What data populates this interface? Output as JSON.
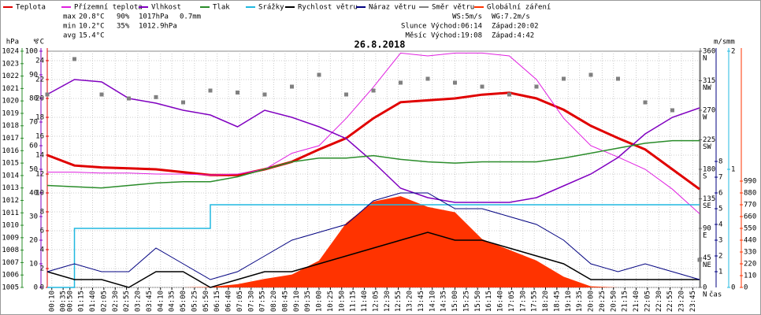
{
  "chart_data": {
    "type": "line",
    "title": "26.8.2018",
    "x_label": "čas",
    "xlim": [
      0,
      1440
    ],
    "xticks": [
      {
        "value": 10,
        "label": "00:10"
      },
      {
        "value": 35,
        "label": "00:35"
      },
      {
        "value": 50,
        "label": "00:50"
      },
      {
        "value": 75,
        "label": "01:15"
      },
      {
        "value": 100,
        "label": "01:40"
      },
      {
        "value": 125,
        "label": "02:05"
      },
      {
        "value": 150,
        "label": "02:30"
      },
      {
        "value": 175,
        "label": "02:55"
      },
      {
        "value": 200,
        "label": "03:20"
      },
      {
        "value": 225,
        "label": "03:45"
      },
      {
        "value": 250,
        "label": "04:10"
      },
      {
        "value": 275,
        "label": "04:35"
      },
      {
        "value": 300,
        "label": "05:00"
      },
      {
        "value": 325,
        "label": "05:25"
      },
      {
        "value": 350,
        "label": "05:50"
      },
      {
        "value": 375,
        "label": "06:15"
      },
      {
        "value": 400,
        "label": "06:40"
      },
      {
        "value": 425,
        "label": "07:05"
      },
      {
        "value": 450,
        "label": "07:30"
      },
      {
        "value": 475,
        "label": "07:55"
      },
      {
        "value": 500,
        "label": "08:20"
      },
      {
        "value": 525,
        "label": "08:45"
      },
      {
        "value": 550,
        "label": "09:10"
      },
      {
        "value": 575,
        "label": "09:35"
      },
      {
        "value": 600,
        "label": "10:00"
      },
      {
        "value": 625,
        "label": "10:25"
      },
      {
        "value": 650,
        "label": "10:50"
      },
      {
        "value": 675,
        "label": "11:15"
      },
      {
        "value": 700,
        "label": "11:40"
      },
      {
        "value": 725,
        "label": "12:05"
      },
      {
        "value": 750,
        "label": "12:30"
      },
      {
        "value": 775,
        "label": "12:55"
      },
      {
        "value": 800,
        "label": "13:20"
      },
      {
        "value": 825,
        "label": "13:45"
      },
      {
        "value": 850,
        "label": "14:10"
      },
      {
        "value": 875,
        "label": "14:35"
      },
      {
        "value": 900,
        "label": "15:00"
      },
      {
        "value": 925,
        "label": "15:25"
      },
      {
        "value": 950,
        "label": "15:50"
      },
      {
        "value": 975,
        "label": "16:15"
      },
      {
        "value": 1000,
        "label": "16:40"
      },
      {
        "value": 1025,
        "label": "17:05"
      },
      {
        "value": 1050,
        "label": "17:30"
      },
      {
        "value": 1075,
        "label": "17:55"
      },
      {
        "value": 1100,
        "label": "18:20"
      },
      {
        "value": 1125,
        "label": "18:45"
      },
      {
        "value": 1150,
        "label": "19:10"
      },
      {
        "value": 1175,
        "label": "19:35"
      },
      {
        "value": 1200,
        "label": "20:00"
      },
      {
        "value": 1225,
        "label": "20:25"
      },
      {
        "value": 1250,
        "label": "20:50"
      },
      {
        "value": 1275,
        "label": "21:15"
      },
      {
        "value": 1300,
        "label": "21:40"
      },
      {
        "value": 1325,
        "label": "22:05"
      },
      {
        "value": 1350,
        "label": "22:30"
      },
      {
        "value": 1375,
        "label": "22:55"
      },
      {
        "value": 1400,
        "label": "23:20"
      },
      {
        "value": 1425,
        "label": "23:45"
      }
    ],
    "grid": true,
    "axes": [
      {
        "label": "hPa",
        "color": "#2a8c2a",
        "lim": [
          1005,
          1024
        ],
        "ticks": [
          1005,
          1006,
          1007,
          1008,
          1009,
          1010,
          1011,
          1012,
          1013,
          1014,
          1015,
          1016,
          1017,
          1018,
          1019,
          1020,
          1021,
          1022,
          1023,
          1024
        ]
      },
      {
        "label": "%",
        "color": "#8000c0",
        "lim": [
          0,
          100
        ],
        "ticks": [
          0,
          10,
          20,
          30,
          40,
          50,
          60,
          70,
          80,
          90,
          100
        ]
      },
      {
        "label": "°C",
        "color": "#e00000",
        "lim": [
          0,
          25
        ],
        "ticks": [
          0,
          2,
          4,
          6,
          8,
          10,
          12,
          14,
          16,
          18,
          20,
          22,
          24
        ]
      },
      {
        "color": "#606060",
        "lim": [
          0,
          360
        ],
        "ticks": [
          0,
          45,
          90,
          135,
          180,
          225,
          270,
          315,
          360
        ],
        "tick_letters": [
          "N",
          "NE",
          "E",
          "SE",
          "S",
          "SW",
          "W",
          "NW",
          "N"
        ]
      },
      {
        "label": "m/s",
        "color": "#000080",
        "lim": [
          0,
          15
        ],
        "ticks": [
          1,
          2,
          3,
          4,
          5,
          6,
          7,
          8
        ]
      },
      {
        "label": "mm",
        "color": "#20b8e0",
        "lim": [
          0,
          2
        ],
        "ticks": [
          0,
          1,
          2
        ]
      },
      {
        "color": "#ff3300",
        "lim": [
          0,
          2200
        ],
        "ticks": [
          0,
          110,
          220,
          330,
          440,
          550,
          660,
          770,
          880,
          990
        ]
      }
    ],
    "x": [
      0,
      60,
      120,
      180,
      240,
      300,
      360,
      420,
      480,
      540,
      600,
      660,
      720,
      780,
      840,
      900,
      960,
      1020,
      1080,
      1140,
      1200,
      1260,
      1320,
      1380,
      1440
    ],
    "series": [
      {
        "name": "Globální záření",
        "color": "#ff3300",
        "style": "area",
        "axis": 6,
        "values": [
          0,
          0,
          0,
          0,
          0,
          0,
          5,
          30,
          80,
          120,
          250,
          600,
          800,
          850,
          750,
          700,
          450,
          350,
          250,
          100,
          10,
          0,
          0,
          0,
          0
        ]
      },
      {
        "name": "Teplota",
        "color": "#e00000",
        "style": "line",
        "width": 3,
        "axis": 2,
        "values": [
          14,
          12.9,
          12.7,
          12.6,
          12.5,
          12.2,
          11.9,
          11.9,
          12.5,
          13.3,
          14.6,
          15.8,
          17.9,
          19.6,
          19.8,
          20,
          20.4,
          20.6,
          20,
          18.8,
          17.1,
          15.8,
          14.6,
          12.5,
          10.4
        ]
      },
      {
        "name": "Přízemní teplota",
        "color": "#e020e0",
        "style": "line",
        "width": 1,
        "axis": 2,
        "values": [
          12.2,
          12.2,
          12.1,
          12.1,
          12,
          12,
          11.9,
          12,
          12.5,
          14.2,
          15,
          17.9,
          21.2,
          24.8,
          24.5,
          24.8,
          24.8,
          24.5,
          22,
          17.9,
          15,
          13.8,
          12.5,
          10.4,
          7.8
        ]
      },
      {
        "name": "Vlhkost",
        "color": "#8000c0",
        "style": "line",
        "width": 1.5,
        "axis": 1,
        "values": [
          81.7,
          88,
          87,
          80,
          78,
          75,
          73,
          68,
          75,
          72,
          68,
          63,
          53,
          42,
          38,
          36,
          36,
          36,
          38,
          43,
          48,
          55,
          65,
          72,
          76
        ]
      },
      {
        "name": "Tlak",
        "color": "#2a8c2a",
        "style": "line",
        "width": 1.5,
        "axis": 0,
        "values": [
          1013.2,
          1013.1,
          1013,
          1013.2,
          1013.4,
          1013.5,
          1013.5,
          1013.9,
          1014.5,
          1015.1,
          1015.4,
          1015.4,
          1015.6,
          1015.3,
          1015.1,
          1015,
          1015.1,
          1015.1,
          1015.1,
          1015.4,
          1015.8,
          1016.2,
          1016.6,
          1016.8,
          1016.8
        ]
      },
      {
        "name": "Srážky",
        "color": "#20b8e0",
        "style": "step",
        "width": 1.5,
        "axis": 5,
        "values": [
          0,
          0.5,
          0.5,
          0.5,
          0.5,
          0.5,
          0.7,
          0.7,
          0.7,
          0.7,
          0.7,
          0.7,
          0.7,
          0.7,
          0.7,
          0.7,
          0.7,
          0.7,
          0.7,
          0.7,
          0.7,
          0.7,
          0.7,
          0.7,
          0.7
        ]
      },
      {
        "name": "Rychlost větru",
        "color": "#000000",
        "style": "line",
        "width": 1.5,
        "axis": 4,
        "values": [
          1,
          0.5,
          0.5,
          0,
          1,
          1,
          0,
          0.5,
          1,
          1,
          1.5,
          2,
          2.5,
          3,
          3.5,
          3,
          3,
          2.5,
          2,
          1.5,
          0.5,
          0.5,
          0.5,
          0.5,
          0.5
        ]
      },
      {
        "name": "Náraz větru",
        "color": "#000080",
        "style": "line",
        "width": 1,
        "axis": 4,
        "values": [
          1,
          1.5,
          1,
          1,
          2.5,
          1.5,
          0.5,
          1,
          2,
          3,
          3.5,
          4,
          5.5,
          6,
          6,
          5,
          5,
          4.5,
          4,
          3,
          1.5,
          1,
          1.5,
          1,
          0.5
        ]
      },
      {
        "name": "Směr větru",
        "color": "#808080",
        "style": "squares",
        "axis": 3,
        "values": [
          294,
          348,
          294,
          288,
          290,
          282,
          300,
          297,
          294,
          306,
          324,
          294,
          300,
          312,
          318,
          312,
          306,
          294,
          306,
          318,
          324,
          318,
          282,
          270,
          42
        ]
      }
    ],
    "legend_order": [
      1,
      2,
      3,
      4,
      5,
      6,
      7,
      8,
      0
    ],
    "stats": [
      {
        "label": "max",
        "values": [
          "20.8°C",
          "90%",
          "1017hPa",
          "0.7mm"
        ]
      },
      {
        "label": "min",
        "values": [
          "10.2°C",
          "35%",
          "1012.9hPa"
        ]
      },
      {
        "label": "avg",
        "values": [
          "15.4°C"
        ]
      }
    ],
    "stat_colors": [
      "#e00000",
      "#8000c0",
      "#2a8c2a",
      "#20b8e0"
    ],
    "info": [
      [
        "WS:5m/s",
        "WG:7.2m/s"
      ],
      [
        "Slunce Východ:06:14",
        "Západ:20:02"
      ],
      [
        "Měsíc Východ:19:08",
        "Západ:4:42"
      ]
    ]
  }
}
